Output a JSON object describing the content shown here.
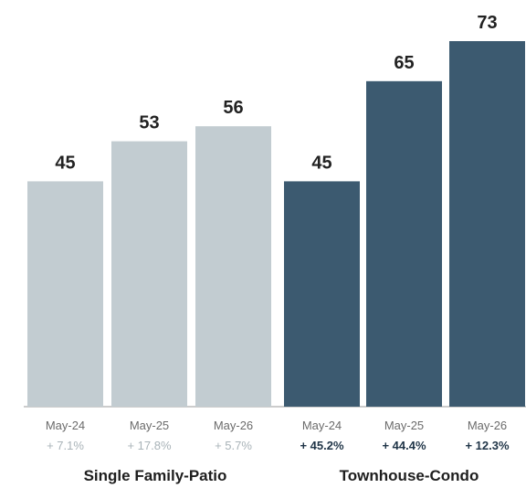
{
  "chart_data": {
    "type": "bar",
    "title": "",
    "xlabel": "",
    "ylabel": "",
    "grid": false,
    "legend": "none",
    "ylim": [
      0,
      80
    ],
    "groups": [
      {
        "name": "Single Family-Patio",
        "color": "#c2ccd1",
        "change_color": "#a9b3b8",
        "categories": [
          "May-24",
          "May-25",
          "May-26"
        ],
        "values": [
          45,
          53,
          56
        ],
        "changes": [
          "+ 7.1%",
          "+ 17.8%",
          "+ 5.7%"
        ]
      },
      {
        "name": "Townhouse-Condo",
        "color": "#3c5a70",
        "change_color": "#1f3447",
        "categories": [
          "May-24",
          "May-25",
          "May-26"
        ],
        "values": [
          45,
          65,
          73
        ],
        "changes": [
          "+ 45.2%",
          "+ 44.4%",
          "+ 12.3%"
        ]
      }
    ]
  }
}
